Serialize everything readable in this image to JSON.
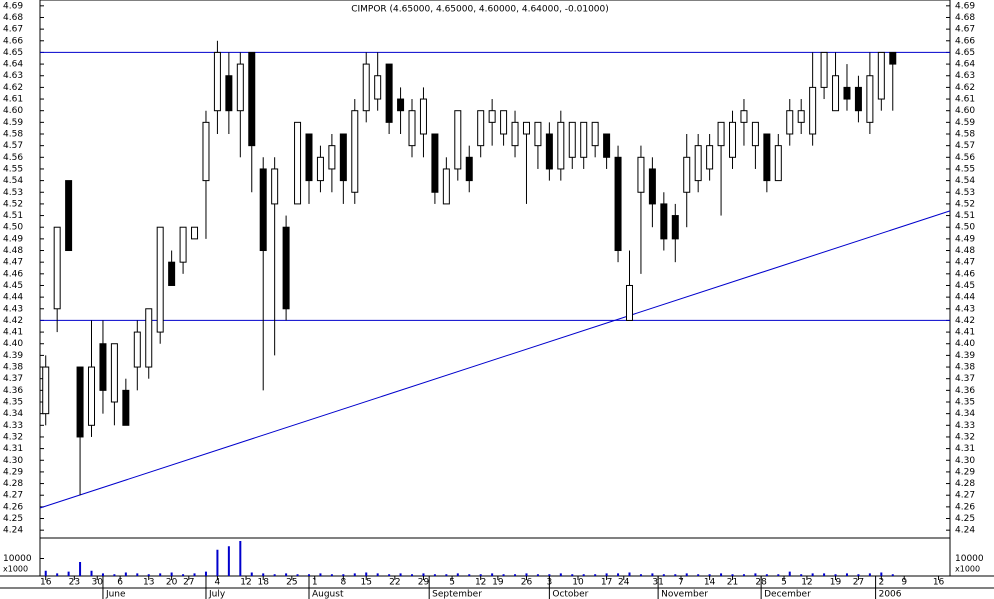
{
  "chart_data": {
    "type": "candlestick",
    "title": "CIMPOR (4.65000, 4.65000, 4.60000, 4.64000, -0.01000)",
    "x": [
      0,
      2,
      4,
      6,
      8,
      10,
      12,
      14,
      16,
      18,
      20,
      22,
      24,
      26,
      28,
      30,
      32,
      34,
      36,
      38,
      40,
      42,
      44,
      46,
      48,
      50,
      52,
      54,
      56,
      58,
      60,
      62,
      64,
      66,
      68,
      70,
      72,
      74,
      76,
      78,
      80,
      82,
      84,
      86,
      88,
      90,
      92,
      94,
      96,
      98,
      100,
      102,
      104,
      106,
      108,
      110,
      112,
      114,
      116,
      118,
      120,
      122,
      124,
      126,
      128,
      130,
      132,
      134,
      136,
      138,
      140,
      142,
      144,
      146,
      148
    ],
    "open": [
      4.34,
      4.43,
      4.54,
      4.38,
      4.33,
      4.4,
      4.35,
      4.36,
      4.38,
      4.38,
      4.41,
      4.47,
      4.47,
      4.49,
      4.54,
      4.6,
      4.63,
      4.6,
      4.65,
      4.55,
      4.52,
      4.5,
      4.52,
      4.58,
      4.54,
      4.55,
      4.58,
      4.53,
      4.6,
      4.61,
      4.64,
      4.61,
      4.57,
      4.58,
      4.58,
      4.52,
      4.55,
      4.56,
      4.57,
      4.59,
      4.58,
      4.57,
      4.58,
      4.57,
      4.58,
      4.55,
      4.56,
      4.56,
      4.57,
      4.58,
      4.56,
      4.42,
      4.53,
      4.55,
      4.52,
      4.51,
      4.53,
      4.54,
      4.55,
      4.57,
      4.56,
      4.59,
      4.57,
      4.58,
      4.54,
      4.58,
      4.59,
      4.58,
      4.62,
      4.6,
      4.62,
      4.62,
      4.59,
      4.61,
      4.65
    ],
    "high": [
      4.39,
      4.5,
      4.54,
      4.38,
      4.42,
      4.42,
      4.4,
      4.37,
      4.42,
      4.43,
      4.5,
      4.48,
      4.5,
      4.5,
      4.6,
      4.66,
      4.65,
      4.65,
      4.65,
      4.56,
      4.56,
      4.51,
      4.59,
      4.58,
      4.57,
      4.58,
      4.58,
      4.61,
      4.65,
      4.65,
      4.64,
      4.62,
      4.61,
      4.62,
      4.58,
      4.56,
      4.6,
      4.57,
      4.6,
      4.61,
      4.6,
      4.6,
      4.59,
      4.59,
      4.59,
      4.6,
      4.59,
      4.59,
      4.59,
      4.58,
      4.57,
      4.48,
      4.57,
      4.56,
      4.53,
      4.52,
      4.58,
      4.58,
      4.58,
      4.59,
      4.6,
      4.61,
      4.59,
      4.58,
      4.58,
      4.61,
      4.61,
      4.65,
      4.65,
      4.65,
      4.64,
      4.63,
      4.65,
      4.65,
      4.65
    ],
    "low": [
      4.33,
      4.41,
      4.48,
      4.27,
      4.32,
      4.34,
      4.33,
      4.33,
      4.36,
      4.37,
      4.4,
      4.45,
      4.46,
      4.49,
      4.49,
      4.58,
      4.58,
      4.56,
      4.53,
      4.36,
      4.39,
      4.42,
      4.52,
      4.52,
      4.53,
      4.53,
      4.52,
      4.52,
      4.59,
      4.6,
      4.58,
      4.58,
      4.56,
      4.56,
      4.52,
      4.52,
      4.54,
      4.53,
      4.56,
      4.57,
      4.57,
      4.56,
      4.52,
      4.55,
      4.54,
      4.54,
      4.55,
      4.55,
      4.56,
      4.55,
      4.47,
      4.42,
      4.46,
      4.5,
      4.48,
      4.47,
      4.5,
      4.53,
      4.54,
      4.51,
      4.55,
      4.57,
      4.55,
      4.53,
      4.54,
      4.57,
      4.58,
      4.57,
      4.61,
      4.6,
      4.6,
      4.59,
      4.58,
      4.6,
      4.6
    ],
    "close": [
      4.38,
      4.5,
      4.48,
      4.32,
      4.38,
      4.36,
      4.4,
      4.33,
      4.41,
      4.43,
      4.5,
      4.45,
      4.5,
      4.5,
      4.59,
      4.65,
      4.6,
      4.64,
      4.57,
      4.48,
      4.55,
      4.43,
      4.59,
      4.54,
      4.56,
      4.57,
      4.54,
      4.6,
      4.64,
      4.63,
      4.59,
      4.6,
      4.6,
      4.61,
      4.53,
      4.55,
      4.6,
      4.54,
      4.6,
      4.6,
      4.6,
      4.59,
      4.59,
      4.59,
      4.55,
      4.59,
      4.59,
      4.59,
      4.59,
      4.56,
      4.48,
      4.45,
      4.56,
      4.52,
      4.49,
      4.49,
      4.56,
      4.57,
      4.57,
      4.59,
      4.59,
      4.6,
      4.59,
      4.54,
      4.57,
      4.6,
      4.6,
      4.62,
      4.65,
      4.63,
      4.61,
      4.6,
      4.63,
      4.65,
      4.64
    ],
    "volume": [
      3000,
      1500,
      2500,
      8000,
      3000,
      1500,
      1000,
      2000,
      1500,
      1000,
      1500,
      2000,
      1000,
      1500,
      2500,
      15000,
      17000,
      20000,
      2000,
      1500,
      1000,
      1500,
      1000,
      1000,
      1500,
      1000,
      1000,
      1500,
      2000,
      1500,
      1000,
      1500,
      1000,
      1500,
      1000,
      1000,
      1500,
      1000,
      1000,
      1500,
      1000,
      1000,
      1500,
      1000,
      1000,
      1500,
      1000,
      1000,
      1000,
      1500,
      1500,
      2000,
      1000,
      1500,
      1000,
      1000,
      1500,
      1000,
      1000,
      1500,
      1000,
      1000,
      1500,
      1000,
      1000,
      2500,
      1000,
      1500,
      1500,
      1000,
      1500,
      1000,
      1500,
      2000,
      1000
    ],
    "up_color": "#ffffff",
    "down_color": "#000000",
    "line_color": "#0000cc",
    "volume_color": "#0000cc",
    "xlim": [
      -1,
      158
    ],
    "xticks": [
      {
        "value": 0,
        "label": "16"
      },
      {
        "value": 5,
        "label": "23"
      },
      {
        "value": 9,
        "label": "30"
      },
      {
        "value": 13,
        "label": "6"
      },
      {
        "value": 18,
        "label": "13"
      },
      {
        "value": 22,
        "label": "20"
      },
      {
        "value": 25,
        "label": "27"
      },
      {
        "value": 30,
        "label": "4"
      },
      {
        "value": 35,
        "label": "12"
      },
      {
        "value": 38,
        "label": "18"
      },
      {
        "value": 43,
        "label": "25"
      },
      {
        "value": 47,
        "label": "1"
      },
      {
        "value": 52,
        "label": "8"
      },
      {
        "value": 56,
        "label": "15"
      },
      {
        "value": 61,
        "label": "22"
      },
      {
        "value": 66,
        "label": "29"
      },
      {
        "value": 71,
        "label": "5"
      },
      {
        "value": 76,
        "label": "12"
      },
      {
        "value": 79,
        "label": "19"
      },
      {
        "value": 84,
        "label": "26"
      },
      {
        "value": 88,
        "label": "3"
      },
      {
        "value": 93,
        "label": "10"
      },
      {
        "value": 98,
        "label": "17"
      },
      {
        "value": 101,
        "label": "24"
      },
      {
        "value": 107,
        "label": "31"
      },
      {
        "value": 111,
        "label": "7"
      },
      {
        "value": 116,
        "label": "14"
      },
      {
        "value": 120,
        "label": "21"
      },
      {
        "value": 125,
        "label": "28"
      },
      {
        "value": 129,
        "label": "5"
      },
      {
        "value": 133,
        "label": "12"
      },
      {
        "value": 138,
        "label": "19"
      },
      {
        "value": 142,
        "label": "27"
      },
      {
        "value": 146,
        "label": "2"
      },
      {
        "value": 150,
        "label": "9"
      },
      {
        "value": 156,
        "label": "16"
      }
    ],
    "months": [
      {
        "value": 10,
        "label": "June"
      },
      {
        "value": 28,
        "label": "July"
      },
      {
        "value": 46,
        "label": "August"
      },
      {
        "value": 67,
        "label": "September"
      },
      {
        "value": 88,
        "label": "October"
      },
      {
        "value": 107,
        "label": "November"
      },
      {
        "value": 125,
        "label": "December"
      },
      {
        "value": 145,
        "label": "2006"
      }
    ],
    "ylim": [
      4.235,
      4.695
    ],
    "yticks": [
      4.24,
      4.25,
      4.26,
      4.27,
      4.28,
      4.29,
      {
        "value": 4.3,
        "label": "4.30"
      },
      4.31,
      4.32,
      4.33,
      4.34,
      4.35,
      4.36,
      4.37,
      4.38,
      4.39,
      {
        "value": 4.4,
        "label": "4.40"
      },
      4.41,
      4.42,
      4.43,
      4.44,
      4.45,
      4.46,
      4.47,
      4.48,
      4.49,
      {
        "value": 4.5,
        "label": "4.50"
      },
      4.51,
      4.52,
      4.53,
      4.54,
      4.55,
      4.56,
      4.57,
      4.58,
      4.59,
      {
        "value": 4.6,
        "label": "4.60"
      },
      4.61,
      4.62,
      4.63,
      4.64,
      4.65,
      4.66,
      4.67,
      4.68,
      4.69
    ],
    "volume_ylim": [
      0,
      20000
    ],
    "volume_yticks": [
      10000
    ],
    "volume_unit": "x1000",
    "hlines": [
      4.65,
      4.42
    ],
    "trendline": {
      "x": [
        -1,
        158
      ],
      "y": [
        4.259,
        4.514
      ]
    }
  }
}
